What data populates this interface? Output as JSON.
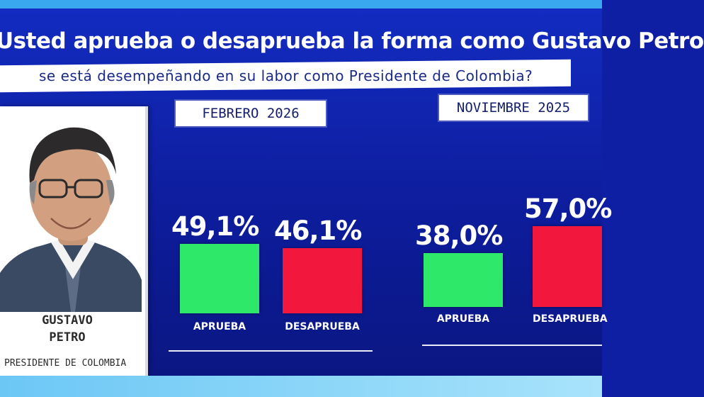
{
  "question": {
    "title": "Usted aprueba o desaprueba la forma como Gustavo Petro",
    "subtitle": "se está desempeñando en su labor como Presidente de Colombia?"
  },
  "profile": {
    "name_line1": "GUSTAVO",
    "name_line2": "PETRO",
    "role": "PRESIDENTE DE COLOMBIA"
  },
  "colors": {
    "background": "#0f1fa3",
    "approve": "#2ee86a",
    "disapprove": "#f2173d",
    "text": "#ffffff"
  },
  "chart_data": [
    {
      "type": "bar",
      "title": "FEBRERO 2026",
      "categories": [
        "APRUEBA",
        "DESAPRUEBA"
      ],
      "values": [
        49.1,
        46.1
      ],
      "value_labels": [
        "49,1%",
        "46,1%"
      ],
      "ylim": [
        0,
        60
      ],
      "colors": [
        "#2ee86a",
        "#f2173d"
      ]
    },
    {
      "type": "bar",
      "title": "NOVIEMBRE 2025",
      "categories": [
        "APRUEBA",
        "DESAPRUEBA"
      ],
      "values": [
        38.0,
        57.0
      ],
      "value_labels": [
        "38,0%",
        "57,0%"
      ],
      "ylim": [
        0,
        60
      ],
      "colors": [
        "#2ee86a",
        "#f2173d"
      ]
    }
  ]
}
